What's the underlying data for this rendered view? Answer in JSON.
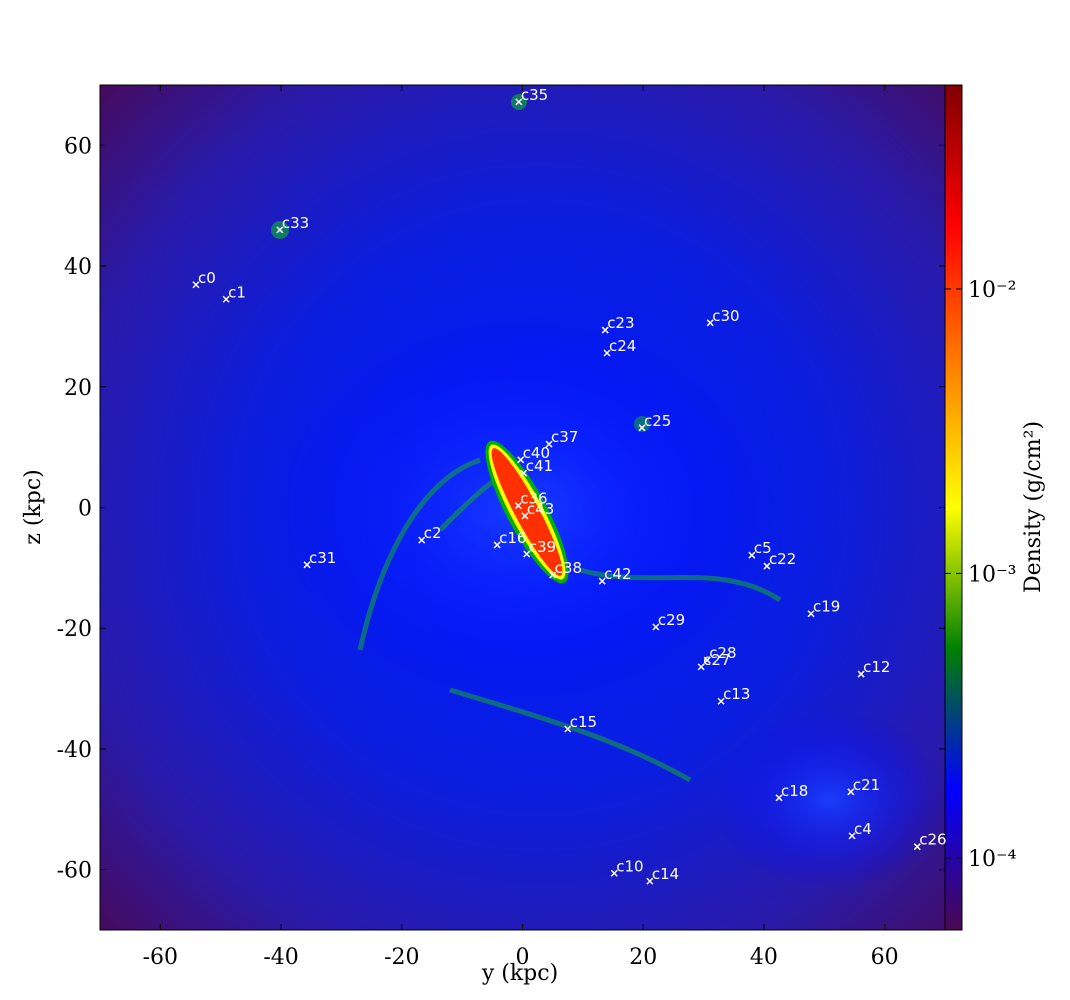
{
  "chart_data": {
    "type": "scatter",
    "xlabel": "y  (kpc)",
    "ylabel": "z  (kpc)",
    "xlim": [
      -70,
      70
    ],
    "ylim": [
      -70,
      70
    ],
    "xticks": [
      -60,
      -40,
      -20,
      0,
      20,
      40,
      60
    ],
    "yticks": [
      -60,
      -40,
      -20,
      0,
      20,
      40,
      60
    ],
    "marker_color": "#ffffff",
    "labels": [
      "c0",
      "c1",
      "c33",
      "c35",
      "c23",
      "c24",
      "c30",
      "c25",
      "c37",
      "c40",
      "c41",
      "c36",
      "c43",
      "c2",
      "c16",
      "c39",
      "c31",
      "c38",
      "c42",
      "c5",
      "c22",
      "c19",
      "c29",
      "c28",
      "c27",
      "c12",
      "c13",
      "c15",
      "c21",
      "c18",
      "c4",
      "c26",
      "c10",
      "c14"
    ],
    "x": [
      -54.1,
      -49.1,
      -40.2,
      -0.6,
      13.7,
      14.0,
      31.1,
      19.8,
      4.4,
      -0.3,
      0.2,
      -0.7,
      0.4,
      -16.7,
      -4.2,
      0.7,
      -35.7,
      5.0,
      13.2,
      38.0,
      40.5,
      47.8,
      22.1,
      30.6,
      29.6,
      56.1,
      32.9,
      7.5,
      54.4,
      42.5,
      54.6,
      65.4,
      15.2,
      21.1
    ],
    "y": [
      36.9,
      34.5,
      46.0,
      67.2,
      29.4,
      25.6,
      30.6,
      13.2,
      10.5,
      7.9,
      5.7,
      0.3,
      -1.4,
      -5.4,
      -6.2,
      -7.7,
      -9.5,
      -11.2,
      -12.2,
      -7.9,
      -9.7,
      -17.6,
      -19.8,
      -25.3,
      -26.4,
      -27.6,
      -32.1,
      -36.7,
      -47.1,
      -48.1,
      -54.4,
      -56.2,
      -60.6,
      -61.9
    ],
    "colorbar": {
      "label": "Density  (g/cm²)",
      "log": true,
      "lim": [
        5.58e-05,
        0.0521
      ],
      "ticks": [
        {
          "value": 0.0001,
          "label": "10⁻⁴"
        },
        {
          "value": 0.001,
          "label": "10⁻³"
        },
        {
          "value": 0.01,
          "label": "10⁻²"
        }
      ],
      "colors": [
        "#4a0850",
        "#0000ff",
        "#008000",
        "#ffff00",
        "#ff8000",
        "#ff0000",
        "#800000"
      ]
    }
  }
}
